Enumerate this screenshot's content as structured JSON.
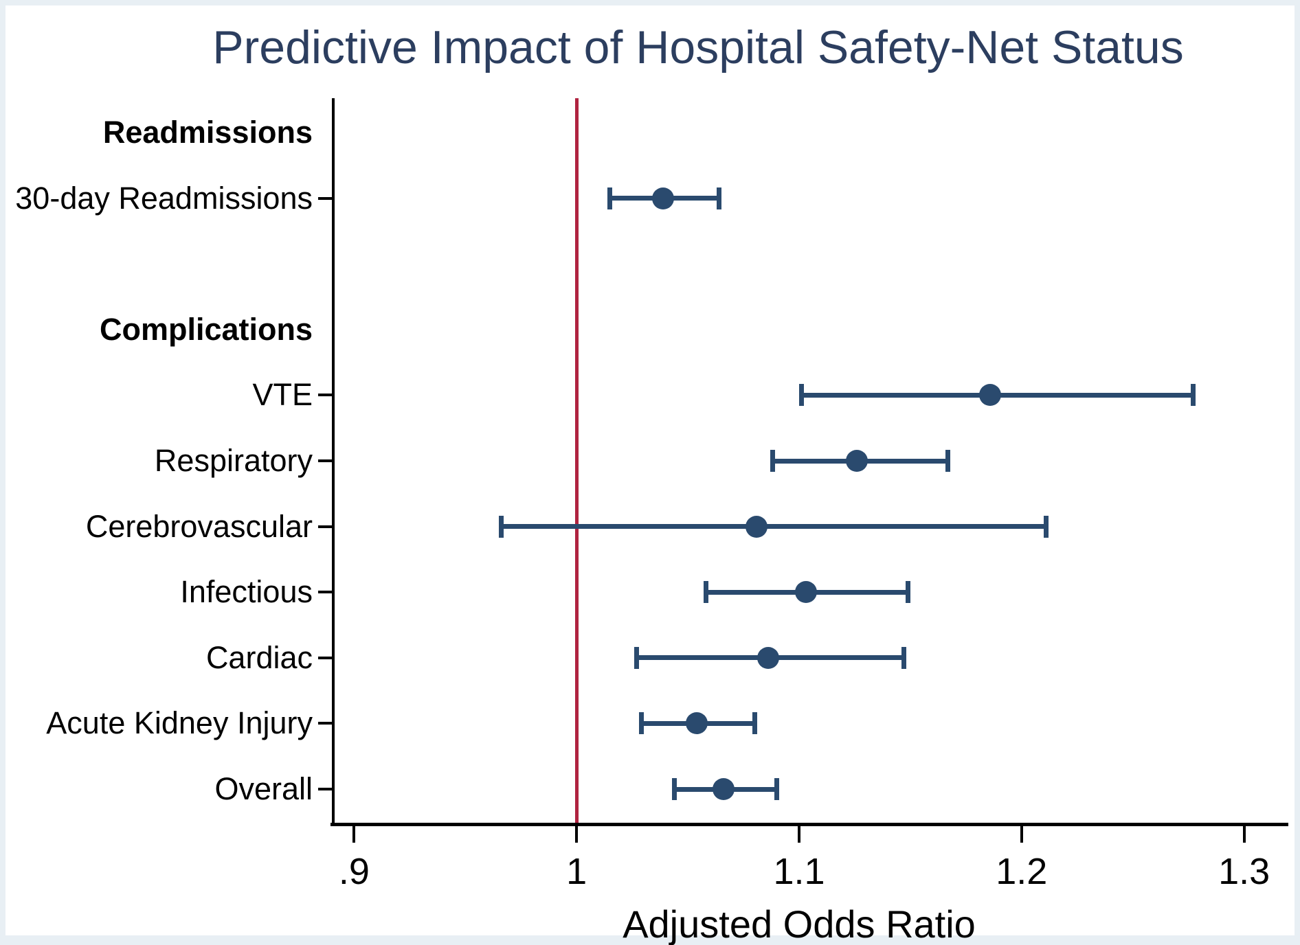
{
  "title": "Predictive Impact of Hospital Safety-Net Status",
  "chart_data": {
    "type": "scatter",
    "subtype": "forest-plot",
    "title": "Predictive Impact of Hospital Safety-Net Status",
    "xlabel": "Adjusted Odds Ratio",
    "xlim": [
      0.89,
      1.31
    ],
    "x_ticks": [
      {
        "value": 0.9,
        "label": ".9"
      },
      {
        "value": 1.0,
        "label": "1"
      },
      {
        "value": 1.1,
        "label": "1.1"
      },
      {
        "value": 1.2,
        "label": "1.2"
      },
      {
        "value": 1.3,
        "label": "1.3"
      }
    ],
    "reference_line_x": 1.0,
    "grid": false,
    "legend": false,
    "rows": [
      {
        "type": "header",
        "label": "Readmissions"
      },
      {
        "type": "data",
        "label": "30-day Readmissions",
        "or": 1.039,
        "ci_low": 1.015,
        "ci_high": 1.064
      },
      {
        "type": "spacer",
        "label": ""
      },
      {
        "type": "header",
        "label": "Complications"
      },
      {
        "type": "data",
        "label": "VTE",
        "or": 1.186,
        "ci_low": 1.101,
        "ci_high": 1.277
      },
      {
        "type": "data",
        "label": "Respiratory",
        "or": 1.126,
        "ci_low": 1.088,
        "ci_high": 1.167
      },
      {
        "type": "data",
        "label": "Cerebrovascular",
        "or": 1.081,
        "ci_low": 0.966,
        "ci_high": 1.211
      },
      {
        "type": "data",
        "label": "Infectious",
        "or": 1.103,
        "ci_low": 1.058,
        "ci_high": 1.149
      },
      {
        "type": "data",
        "label": "Cardiac",
        "or": 1.086,
        "ci_low": 1.027,
        "ci_high": 1.147
      },
      {
        "type": "data",
        "label": "Acute Kidney Injury",
        "or": 1.054,
        "ci_low": 1.029,
        "ci_high": 1.08
      },
      {
        "type": "data",
        "label": "Overall",
        "or": 1.066,
        "ci_low": 1.044,
        "ci_high": 1.09
      }
    ],
    "colors": {
      "marker": "#2a4a6e",
      "ci": "#2a4a6e",
      "reference_line": "#b02340",
      "title": "#2c3e5f",
      "axis": "#000000",
      "frame": "#e8eff4"
    }
  }
}
